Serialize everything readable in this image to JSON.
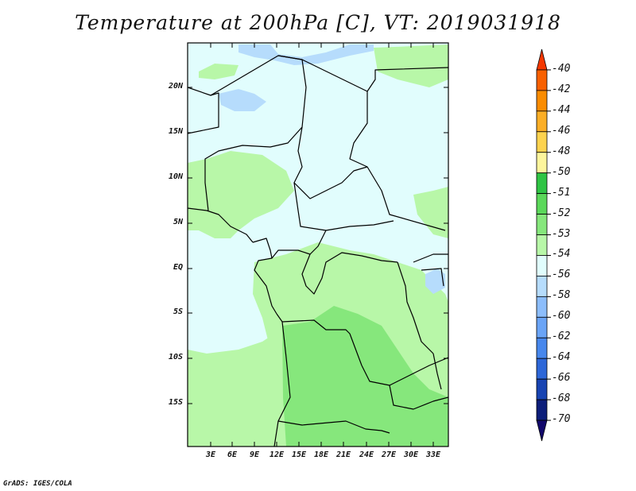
{
  "title": "Temperature at 200hPa [C], VT: 2019031918",
  "credit": "GrADS: IGES/COLA",
  "lat_labels": [
    "20N",
    "15N",
    "10N",
    "5N",
    "EQ",
    "5S",
    "10S",
    "15S"
  ],
  "lon_labels": [
    "3E",
    "6E",
    "9E",
    "12E",
    "15E",
    "18E",
    "21E",
    "24E",
    "27E",
    "30E",
    "33E"
  ],
  "colorbar": {
    "labels": [
      "-40",
      "-42",
      "-44",
      "-46",
      "-48",
      "-50",
      "-51",
      "-52",
      "-53",
      "-54",
      "-56",
      "-58",
      "-60",
      "-62",
      "-64",
      "-66",
      "-68",
      "-70"
    ],
    "colors": [
      "#f53800",
      "#f86000",
      "#fa8c00",
      "#fbae26",
      "#fdd34f",
      "#fdf59c",
      "#2fc444",
      "#5bd85a",
      "#86e77c",
      "#b8f7a8",
      "#e1fdfd",
      "#b6dcfc",
      "#8cbdfb",
      "#6aa4f6",
      "#4787ec",
      "#2d67d8",
      "#1844b2",
      "#0c1e7a",
      "#12086b"
    ]
  },
  "map": {
    "background_color": "#e1fdfd",
    "green_light": "#b8f7a8",
    "green_mid": "#86e77c",
    "blue_light": "#b6dcfc"
  }
}
